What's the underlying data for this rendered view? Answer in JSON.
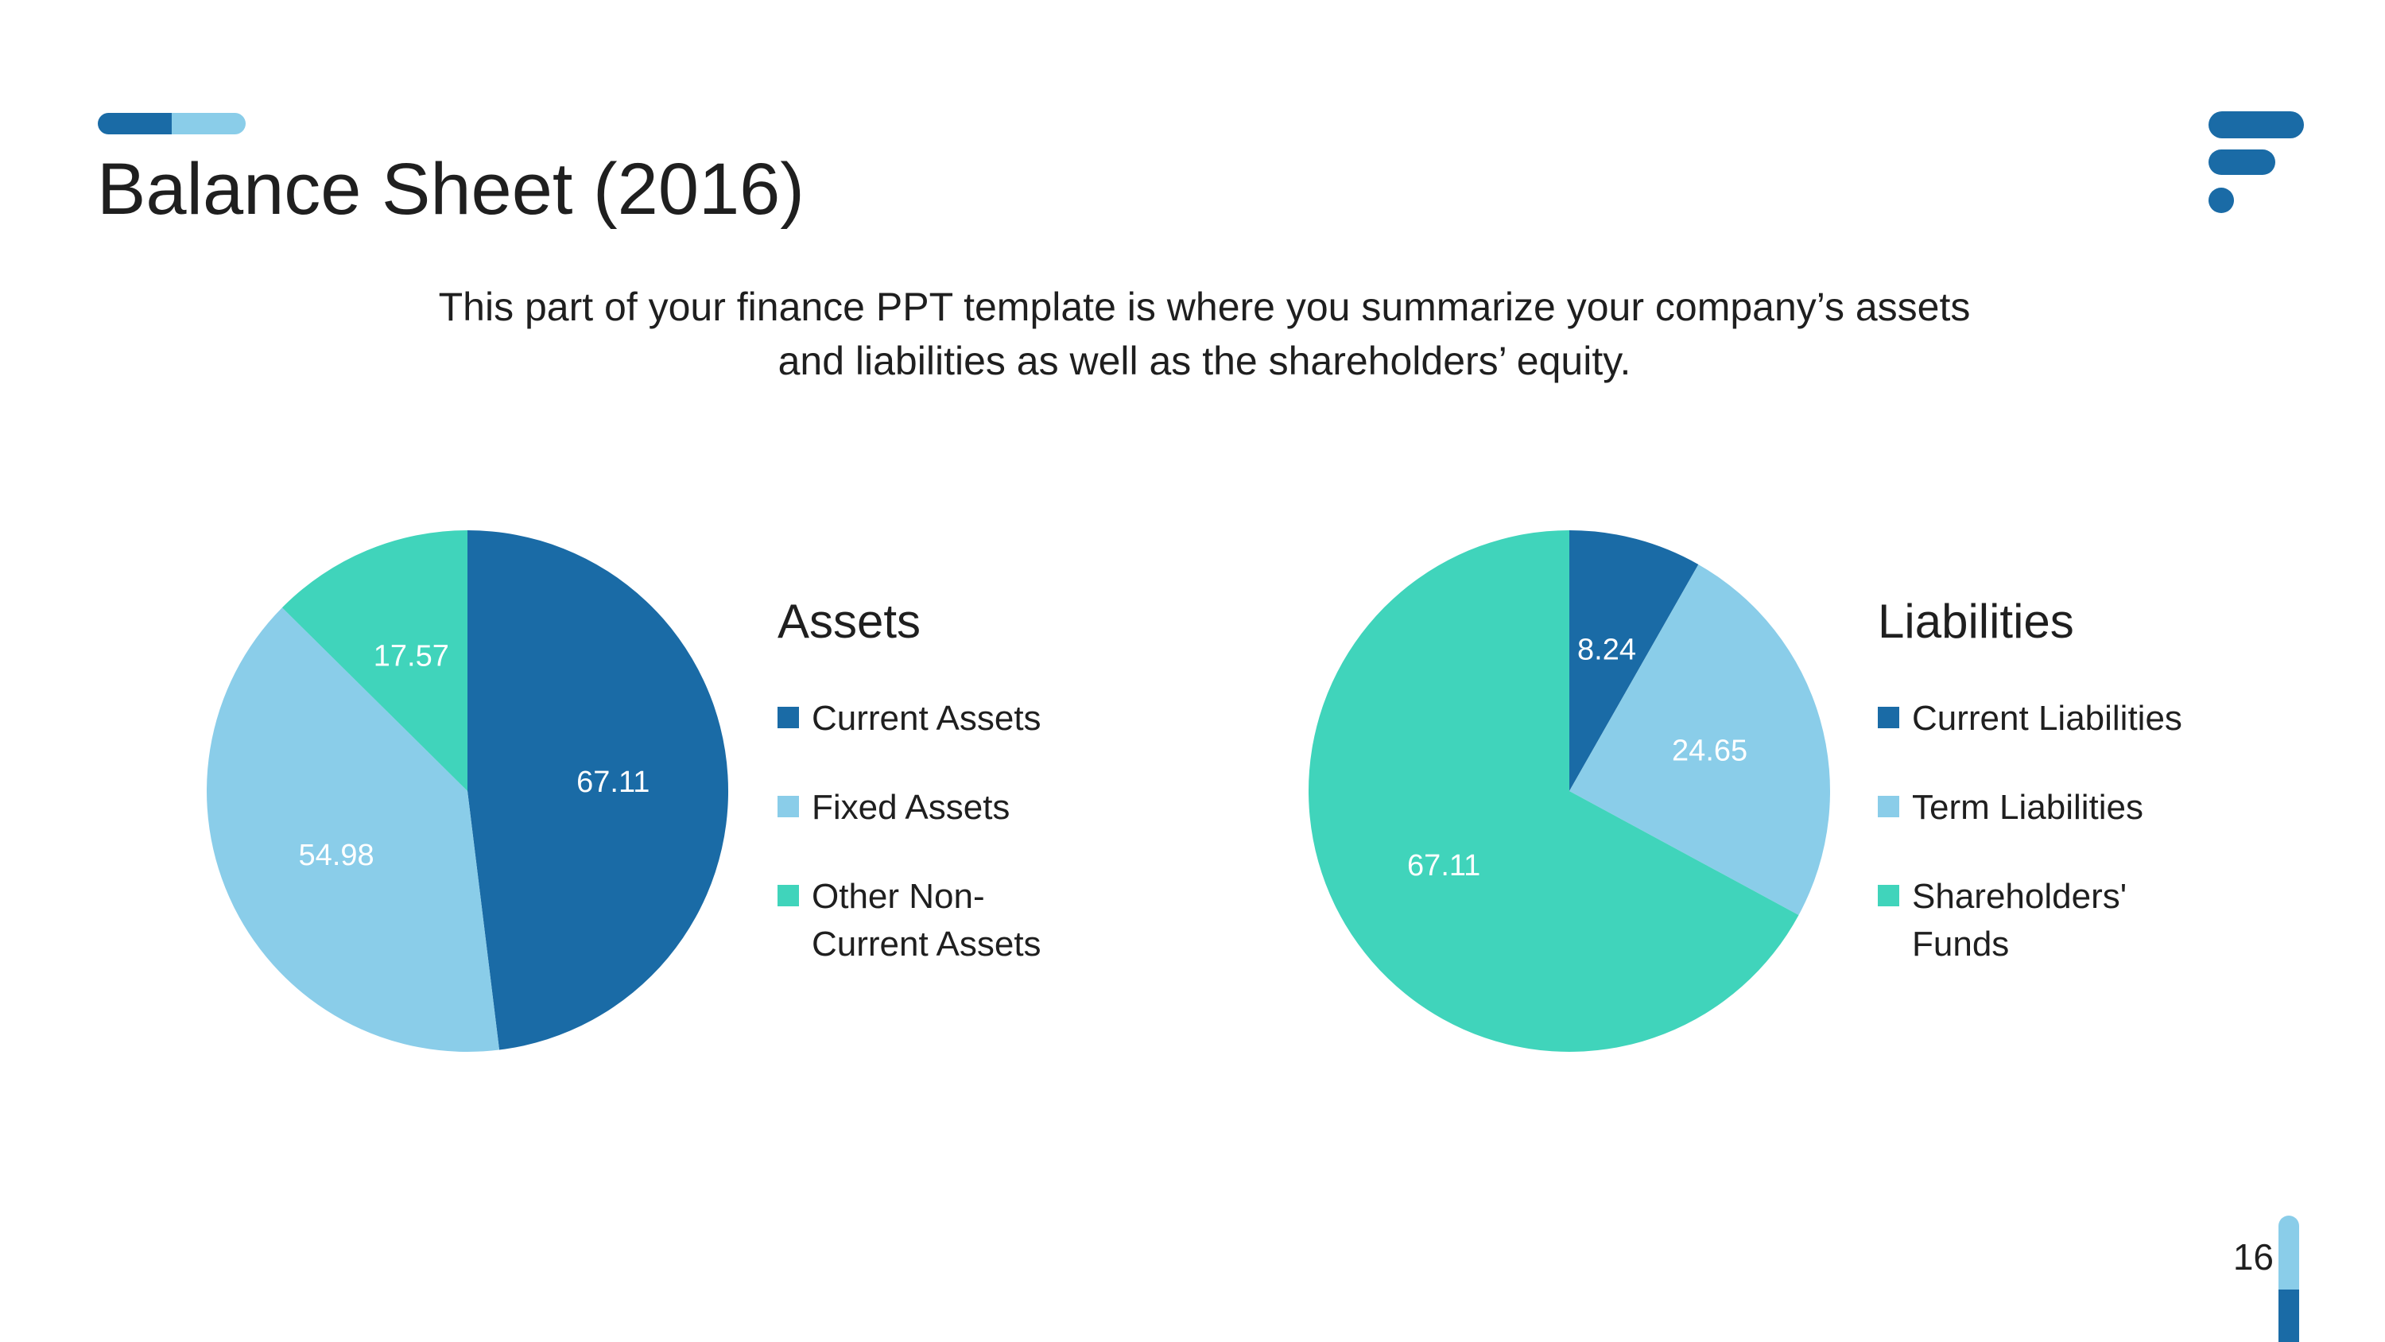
{
  "slide": {
    "title": "Balance Sheet (2016)",
    "subtitle_line1": "This part of your finance PPT template is where you summarize your company’s assets",
    "subtitle_line2": "and liabilities as well as the shareholders’ equity.",
    "page_number": "16"
  },
  "colors": {
    "dark_blue": "#1a6ba6",
    "light_blue": "#8acde9",
    "teal": "#40d4bb",
    "text": "#1f1f1f"
  },
  "chart_data": [
    {
      "type": "pie",
      "title": "Assets",
      "categories": [
        "Current Assets",
        "Fixed Assets",
        "Other Non-Current Assets"
      ],
      "legend_labels": [
        "Current Assets",
        "Fixed Assets",
        "Other Non- Current Assets"
      ],
      "values": [
        67.11,
        54.98,
        17.57
      ],
      "value_labels": [
        "67.11",
        "54.98",
        "17.57"
      ],
      "legend_position": "right"
    },
    {
      "type": "pie",
      "title": "Liabilities",
      "categories": [
        "Current Liabilities",
        "Term Liabilities",
        "Shareholders' Funds"
      ],
      "legend_labels": [
        "Current Liabilities",
        "Term Liabilities",
        "Shareholders' Funds"
      ],
      "values": [
        8.24,
        24.65,
        67.11
      ],
      "value_labels": [
        "8.24",
        "24.65",
        "67.11"
      ],
      "legend_position": "right"
    }
  ]
}
